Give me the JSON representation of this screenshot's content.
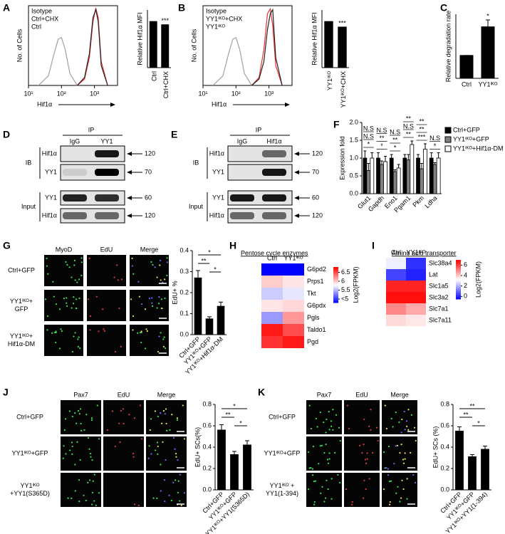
{
  "panel_a": {
    "letter": "A",
    "histogram": {
      "y_label": "No. of Cells",
      "x_label": "Hif1α",
      "log_x": true,
      "xlim": [
        10,
        5000
      ],
      "ylim": [
        0,
        100
      ],
      "xticks": [
        {
          "value": 10,
          "label": "10¹"
        },
        {
          "value": 100,
          "label": "10²"
        },
        {
          "value": 1000,
          "label": "10³"
        }
      ],
      "series": [
        {
          "name": "Isotype",
          "color": "#a0a0a0",
          "x": [
            20,
            40,
            60,
            80,
            100,
            130,
            180,
            300
          ],
          "values": [
            0,
            12,
            40,
            58,
            60,
            45,
            15,
            0
          ]
        },
        {
          "name": "Ctrl+CHX",
          "color": "#e8312f",
          "x": [
            300,
            500,
            700,
            900,
            1100,
            1300,
            1600,
            2500
          ],
          "values": [
            0,
            8,
            35,
            80,
            97,
            85,
            30,
            0
          ]
        },
        {
          "name": "Ctrl",
          "color": "#222222",
          "x": [
            300,
            500,
            700,
            900,
            1100,
            1300,
            1600,
            2500
          ],
          "values": [
            0,
            10,
            40,
            85,
            95,
            80,
            25,
            0
          ]
        }
      ]
    },
    "bar": {
      "y_label": "Relative Hif1α MFI",
      "categories": [
        "Ctrl",
        "Ctrl+CHX"
      ],
      "values": [
        1,
        0.93
      ],
      "ylim": [
        0,
        1.25
      ],
      "color": "#000000",
      "significance": [
        {
          "label": "***",
          "bars": [
            1
          ]
        }
      ]
    }
  },
  "panel_b": {
    "letter": "B",
    "histogram": {
      "y_label": "No. of Cells",
      "x_label": "Hif1α",
      "log_x": true,
      "xlim": [
        10,
        5000
      ],
      "ylim": [
        0,
        100
      ],
      "xticks": [
        {
          "value": 10,
          "label": "10¹"
        },
        {
          "value": 100,
          "label": "10²"
        },
        {
          "value": 1000,
          "label": "10³"
        }
      ],
      "series": [
        {
          "name": "Isotype",
          "color": "#a0a0a0",
          "x": [
            20,
            40,
            60,
            80,
            100,
            130,
            180,
            300
          ],
          "values": [
            0,
            12,
            40,
            58,
            60,
            45,
            15,
            0
          ]
        },
        {
          "name": "YY1ⁱᴷᴼ+CHX",
          "color": "#e8312f",
          "x": [
            300,
            500,
            700,
            900,
            1100,
            1300,
            1600,
            2500
          ],
          "values": [
            0,
            10,
            45,
            90,
            96,
            75,
            25,
            0
          ]
        },
        {
          "name": "YY1ⁱᴷᴼ",
          "color": "#222222",
          "x": [
            300,
            500,
            700,
            900,
            1100,
            1300,
            1600,
            2500
          ],
          "values": [
            0,
            8,
            30,
            70,
            90,
            95,
            35,
            0
          ]
        }
      ]
    },
    "bar": {
      "y_label": "Relative Hif1α MFI",
      "categories": [
        "YY1ⁱᴷᴼ",
        "YY1ⁱᴷᴼ+CHX"
      ],
      "values": [
        1,
        0.88
      ],
      "ylim": [
        0,
        1.25
      ],
      "color": "#000000",
      "significance": [
        {
          "label": "***",
          "bars": [
            1
          ]
        }
      ]
    }
  },
  "panel_c": {
    "letter": "C",
    "bar": {
      "y_label": "Relative degradation rate",
      "categories": [
        "Ctrl",
        "YY1ⁱᴷᴼ"
      ],
      "values": [
        1,
        2.25
      ],
      "errors": [
        0,
        0.3
      ],
      "ylim": [
        0,
        2.8
      ],
      "color": "#000000",
      "significance": [
        {
          "label": "*",
          "bars": [
            1
          ]
        }
      ]
    }
  },
  "panel_d": {
    "letter": "D",
    "title": "IP",
    "lanes": [
      "IgG",
      "YY1"
    ],
    "groups": [
      {
        "label": "IB",
        "rows": [
          {
            "label": "Hif1α",
            "marker": 120
          },
          {
            "label": "YY1",
            "marker": 70
          }
        ]
      },
      {
        "label": "Input",
        "rows": [
          {
            "label": "YY1",
            "marker": 60
          },
          {
            "label": "Hif1α",
            "marker": 120
          }
        ]
      }
    ]
  },
  "panel_e": {
    "letter": "E",
    "title": "IP",
    "lanes": [
      "IgG",
      "Hif1α"
    ],
    "groups": [
      {
        "label": "IB",
        "rows": [
          {
            "label": "Hif1α",
            "marker": 120
          },
          {
            "label": "YY1",
            "marker": 70
          }
        ]
      },
      {
        "label": "Input",
        "rows": [
          {
            "label": "YY1",
            "marker": 60
          },
          {
            "label": "Hif1α",
            "marker": 120
          }
        ]
      }
    ]
  },
  "panel_f": {
    "letter": "F",
    "y_label": "Expression fold",
    "categories": [
      "Glut1",
      "Gapdh",
      "Eno1",
      "Pgam1",
      "Pkm",
      "Ldha"
    ],
    "ylim": [
      0,
      2
    ],
    "yticks": [
      {
        "value": 0,
        "label": "0.0"
      },
      0.5,
      {
        "value": 1,
        "label": "1.0"
      },
      1.5,
      {
        "value": 2,
        "label": "2.0"
      }
    ],
    "series": [
      {
        "name": "Ctrl+GFP",
        "color": "#000000",
        "values": [
          1.0,
          1.0,
          1.0,
          1.0,
          1.0,
          1.0
        ],
        "errors": [
          0.2,
          0.15,
          0.1,
          0.1,
          0.1,
          0.15
        ]
      },
      {
        "name": "YY1ⁱᴷᴼ+GFP",
        "color": "#808080",
        "values": [
          0.65,
          0.82,
          0.62,
          0.95,
          0.7,
          0.82
        ],
        "errors": [
          0.2,
          0.1,
          0.05,
          0.15,
          0.15,
          0.05
        ]
      },
      {
        "name": "YY1ⁱᴷᴼ+Hif1α-DM",
        "color": "#ffffff",
        "values": [
          1.0,
          0.9,
          0.72,
          1.38,
          1.25,
          1.0
        ],
        "errors": [
          0.15,
          0.15,
          0.1,
          0.1,
          0.15,
          0.15
        ]
      }
    ],
    "significance": [
      [
        "*",
        "N.S",
        "N.S"
      ],
      [
        "*",
        "**",
        "N.S"
      ],
      [
        "*",
        "**",
        "N.S"
      ],
      [
        "**",
        "N.S",
        "**"
      ],
      [
        "***",
        "**",
        "**"
      ],
      [
        "*",
        "N.S"
      ]
    ]
  },
  "panel_g": {
    "letter": "G",
    "images": {
      "columns": [
        "MyoD",
        "EdU",
        "Merge"
      ],
      "rows": [
        [
          "Ctrl+GFP"
        ],
        [
          "YY1ⁱᴷᴼ+",
          "GFP"
        ],
        [
          "YY1ⁱᴷᴼ+",
          "Hif1α-DM"
        ]
      ]
    },
    "bar": {
      "y_label": "EdU+ %",
      "categories": [
        "Ctrl+GFP",
        "YY1ⁱᴷᴼ+GFP",
        "YY1ⁱᴷᴼ+Hif1α-DM"
      ],
      "values": [
        0.27,
        0.075,
        0.135
      ],
      "errors": [
        0.035,
        0.01,
        0.02
      ],
      "ylim": [
        0,
        0.4
      ],
      "yticks": [
        {
          "value": 0,
          "label": "0.0"
        },
        0.1,
        0.2,
        0.3,
        0.4
      ],
      "color": "#000000",
      "significance": [
        {
          "label": "*",
          "bars": [
            0,
            2
          ]
        },
        {
          "label": "**",
          "bars": [
            0,
            1
          ]
        },
        {
          "label": "*",
          "bars": [
            1,
            2
          ]
        }
      ]
    }
  },
  "panel_h": {
    "letter": "H",
    "title": "Pentose  cycle enzymes",
    "columns": [
      "Ctrl",
      "YY1ⁱᴷᴼ"
    ],
    "rows": [
      "G6pd2",
      "Prps1",
      "Tkt",
      "G6pdx",
      "Pgls",
      "Taldo1",
      "Pgd"
    ],
    "values": [
      [
        4.8,
        4.8
      ],
      [
        6.0,
        5.9
      ],
      [
        5.6,
        5.7
      ],
      [
        5.9,
        5.95
      ],
      [
        5.4,
        6.2
      ],
      [
        6.7,
        6.5
      ],
      [
        6.6,
        6.7
      ]
    ],
    "vlim": [
      4.8,
      6.8
    ],
    "colorbar_label": "Log2(FPKM)",
    "colorbar_ticks": [
      {
        "value": 5,
        "label": "<5"
      },
      5.5,
      6,
      6.5
    ]
  },
  "panel_i": {
    "letter": "I",
    "title": "Amino acid transporter",
    "columns": [
      "Ctrl",
      "YY1ⁱᴷᴼ"
    ],
    "rows": [
      "Slc38a4",
      "Lat",
      "Slc1a5",
      "Slc3a2",
      "Slc7a1",
      "Slc7a11"
    ],
    "values": [
      [
        3,
        0.2
      ],
      [
        0.5,
        0
      ],
      [
        6.5,
        6.5
      ],
      [
        6.8,
        6.8
      ],
      [
        5,
        4.5
      ],
      [
        3.8,
        3.6
      ]
    ],
    "vlim": [
      -0.5,
      7
    ],
    "colorbar_label": "Log2(FPKM)",
    "colorbar_ticks": [
      0,
      2,
      4,
      6
    ]
  },
  "panel_j": {
    "letter": "J",
    "images": {
      "columns": [
        "Pax7",
        "EdU",
        "Merge"
      ],
      "rows": [
        [
          "Ctrl+GFP"
        ],
        [
          "YY1ⁱᴷᴼ+GFP"
        ],
        [
          "YY1ⁱᴷᴼ",
          "+YY1(S365D)"
        ]
      ]
    },
    "bar": {
      "y_label": "EdU+ SCs(%)",
      "categories": [
        "Ctrl+GFP",
        "YY1ⁱᴷᴼ+GFP",
        "YY1ⁱᴷᴼ+YY1(S365D)"
      ],
      "values": [
        0.56,
        0.33,
        0.42
      ],
      "errors": [
        0.05,
        0.03,
        0.04
      ],
      "ylim": [
        0,
        0.8
      ],
      "yticks": [
        {
          "value": 0,
          "label": "0.0"
        },
        0.2,
        0.4,
        0.6,
        0.8
      ],
      "color": "#000000",
      "significance": [
        {
          "label": "*",
          "bars": [
            0,
            2
          ]
        },
        {
          "label": "**",
          "bars": [
            0,
            1
          ]
        },
        {
          "label": "*",
          "bars": [
            1,
            2
          ]
        }
      ]
    }
  },
  "panel_k": {
    "letter": "K",
    "images": {
      "columns": [
        "Pax7",
        "EdU",
        "Merge"
      ],
      "rows": [
        [
          "Ctrl+GFP"
        ],
        [
          "YY1ⁱᴷᴼ+GFP"
        ],
        [
          "YY1ⁱᴷᴼ +",
          "YY1(1-394)"
        ]
      ]
    },
    "bar": {
      "y_label": "EdU+ SCs (%)",
      "categories": [
        "Ctrl+GFP",
        "YY1ⁱᴷᴼ+GFP",
        "YY1ⁱᴷᴼ+YY1(1-394)"
      ],
      "values": [
        0.55,
        0.31,
        0.38
      ],
      "errors": [
        0.04,
        0.02,
        0.03
      ],
      "ylim": [
        0,
        0.8
      ],
      "yticks": [
        {
          "value": 0,
          "label": "0.0"
        },
        0.2,
        0.4,
        0.6,
        0.8
      ],
      "color": "#000000",
      "significance": [
        {
          "label": "**",
          "bars": [
            0,
            2
          ]
        },
        {
          "label": "**",
          "bars": [
            0,
            1
          ]
        },
        {
          "label": "*",
          "bars": [
            1,
            2
          ]
        }
      ]
    }
  }
}
